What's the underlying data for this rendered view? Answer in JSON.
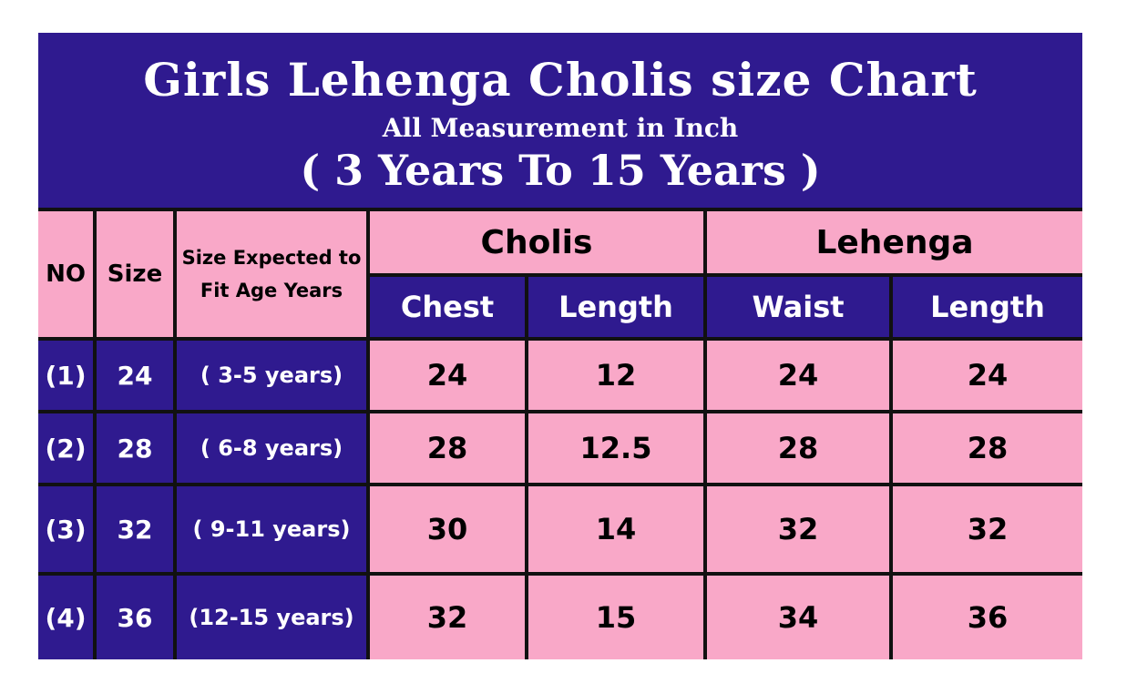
{
  "title": "Girls Lehenga Cholis size Chart",
  "subtitle": "All Measurement in Inch",
  "range": "( 3 Years To 15 Years )",
  "headers": {
    "no": "NO",
    "size": "Size",
    "age": "Size Expected to Fit Age Years",
    "cholis": "Cholis",
    "lehenga": "Lehenga",
    "chest": "Chest",
    "choli_length": "Length",
    "waist": "Waist",
    "lehenga_length": "Length"
  },
  "rows": [
    [
      "(1)",
      "24",
      "( 3-5 years)",
      "24",
      "12",
      "24",
      "24"
    ],
    [
      "(2)",
      "28",
      "( 6-8 years)",
      "28",
      "12.5",
      "28",
      "28"
    ],
    [
      "(3)",
      "32",
      "( 9-11 years)",
      "30",
      "14",
      "32",
      "32"
    ],
    [
      "(4)",
      "36",
      "(12-15 years)",
      "32",
      "15",
      "34",
      "36"
    ]
  ],
  "colors": {
    "purple": "#2f1a8f",
    "pink": "#f9a8c8"
  }
}
